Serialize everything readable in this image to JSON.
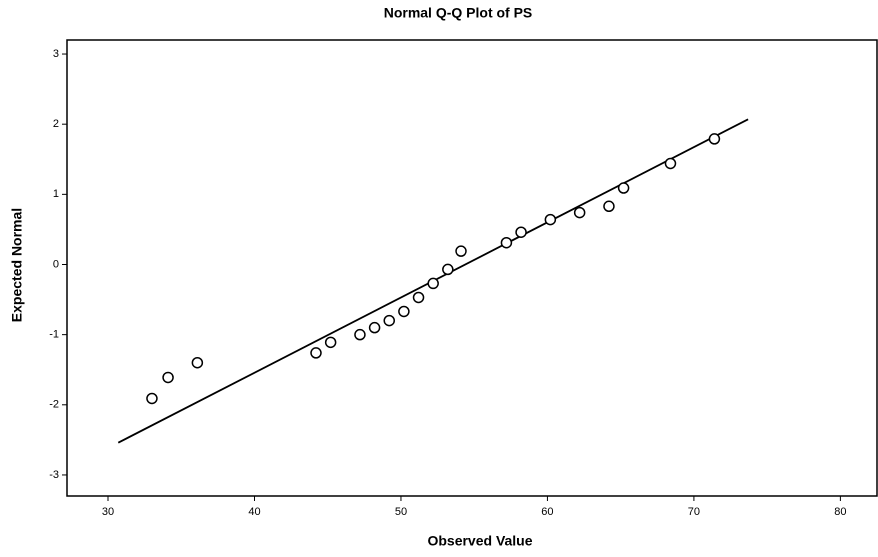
{
  "chart_data": {
    "type": "scatter",
    "title": "Normal Q-Q Plot of PS",
    "x_label": "Observed Value",
    "y_label": "Expected Normal",
    "x": [
      33.0,
      34.1,
      36.1,
      44.2,
      45.2,
      47.2,
      48.2,
      49.2,
      50.2,
      51.2,
      52.2,
      53.2,
      54.1,
      57.2,
      58.2,
      60.2,
      62.2,
      64.2,
      65.2,
      68.4,
      71.4
    ],
    "values": [
      -1.91,
      -1.61,
      -1.4,
      -1.26,
      -1.11,
      -1.0,
      -0.9,
      -0.8,
      -0.67,
      -0.47,
      -0.27,
      -0.07,
      0.19,
      0.31,
      0.46,
      0.64,
      0.74,
      0.83,
      1.09,
      1.44,
      1.79
    ],
    "color": "#000000",
    "fit_line": {
      "x": [
        30.7,
        73.7
      ],
      "y": [
        -2.54,
        2.07
      ]
    },
    "xlim": [
      27.2,
      82.5
    ],
    "ylim": [
      -3.3,
      3.2
    ],
    "xticks": [
      30,
      40,
      50,
      60,
      70,
      80
    ],
    "yticks": [
      -3,
      -2,
      -1,
      0,
      1,
      2,
      3
    ],
    "grid": false
  }
}
